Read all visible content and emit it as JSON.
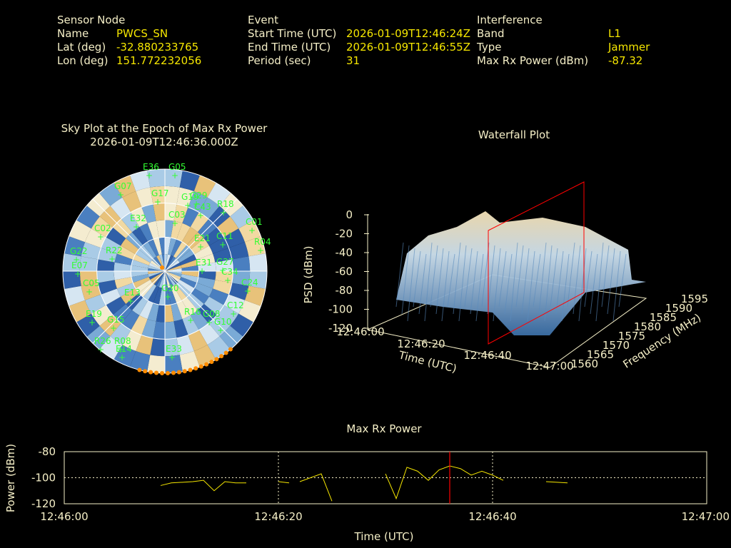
{
  "header": {
    "sensor": {
      "section": "Sensor Node",
      "name_label": "Name",
      "name_value": "PWCS_SN",
      "lat_label": "Lat (deg)",
      "lat_value": "-32.880233765",
      "lon_label": "Lon (deg)",
      "lon_value": "151.772232056"
    },
    "event": {
      "section": "Event",
      "start_label": "Start Time (UTC)",
      "start_value": "2026-01-09T12:46:24Z",
      "end_label": "End Time (UTC)",
      "end_value": "2026-01-09T12:46:55Z",
      "period_label": "Period (sec)",
      "period_value": "31"
    },
    "interference": {
      "section": "Interference",
      "band_label": "Band",
      "band_value": "L1",
      "type_label": "Type",
      "type_value": "Jammer",
      "power_label": "Max Rx Power (dBm)",
      "power_value": "-87.32"
    }
  },
  "sky_plot": {
    "title": "Sky Plot at the Epoch of Max Rx Power",
    "subtitle": "2026-01-09T12:46:36.000Z",
    "satellites": [
      "E36",
      "G05",
      "G29",
      "G07",
      "G17",
      "G19",
      "R18",
      "C43",
      "C01",
      "R04",
      "C11",
      "E21",
      "C03",
      "C02",
      "R22",
      "E31",
      "G27",
      "G22",
      "E07",
      "C34",
      "C05",
      "C24",
      "G30",
      "C12",
      "G08",
      "E13",
      "R16",
      "G10",
      "E19",
      "G15",
      "R26",
      "R08",
      "E14",
      "E33",
      "E32"
    ]
  },
  "chart_data": [
    {
      "type": "surface",
      "title": "Waterfall Plot",
      "xlabel": "Time (UTC)",
      "ylabel": "Frequency (MHz)",
      "zlabel": "PSD (dBm)",
      "x_ticks": [
        "12:46:00",
        "12:46:20",
        "12:46:40",
        "12:47:00"
      ],
      "y_ticks": [
        "1560",
        "1565",
        "1570",
        "1575",
        "1580",
        "1585",
        "1590",
        "1595"
      ],
      "z_ticks": [
        "0",
        "-20",
        "-40",
        "-60",
        "-80",
        "-100",
        "-120"
      ],
      "zlim": [
        -120,
        0
      ],
      "marker_time": "12:46:36"
    },
    {
      "type": "line",
      "title": "Max Rx Power",
      "xlabel": "Time (UTC)",
      "ylabel": "Power (dBm)",
      "x_ticks": [
        "12:46:00",
        "12:46:20",
        "12:46:40",
        "12:47:00"
      ],
      "y_ticks": [
        "-80",
        "-100",
        "-120"
      ],
      "ylim": [
        -120,
        -80
      ],
      "xlim_sec": [
        0,
        60
      ],
      "marker_sec": 36,
      "series": [
        {
          "points": [
            [
              9,
              -106
            ],
            [
              10,
              -104
            ],
            [
              12,
              -103
            ],
            [
              13,
              -102
            ],
            [
              14,
              -110
            ],
            [
              15,
              -103
            ],
            [
              16,
              -104
            ],
            [
              17,
              -104
            ]
          ]
        },
        {
          "points": [
            [
              20,
              -103
            ],
            [
              21,
              -104
            ]
          ]
        },
        {
          "points": [
            [
              22,
              -103
            ],
            [
              24,
              -97
            ],
            [
              25,
              -118
            ]
          ]
        },
        {
          "points": [
            [
              30,
              -97
            ],
            [
              31,
              -116
            ],
            [
              32,
              -92
            ],
            [
              33,
              -95
            ],
            [
              34,
              -102
            ],
            [
              35,
              -94
            ],
            [
              36,
              -91
            ],
            [
              37,
              -93
            ],
            [
              38,
              -98
            ],
            [
              39,
              -95
            ],
            [
              40,
              -98
            ],
            [
              41,
              -102
            ]
          ]
        },
        {
          "points": [
            [
              45,
              -103
            ],
            [
              46,
              -103.5
            ],
            [
              47,
              -104
            ]
          ]
        }
      ]
    }
  ],
  "colors": {
    "text": "#f5efc7",
    "value": "#f5e600",
    "grid": "#f5efc7",
    "sat": "#33ff33",
    "marker": "#ff0000",
    "line": "#f5e600",
    "orange": "#ff8c00"
  }
}
